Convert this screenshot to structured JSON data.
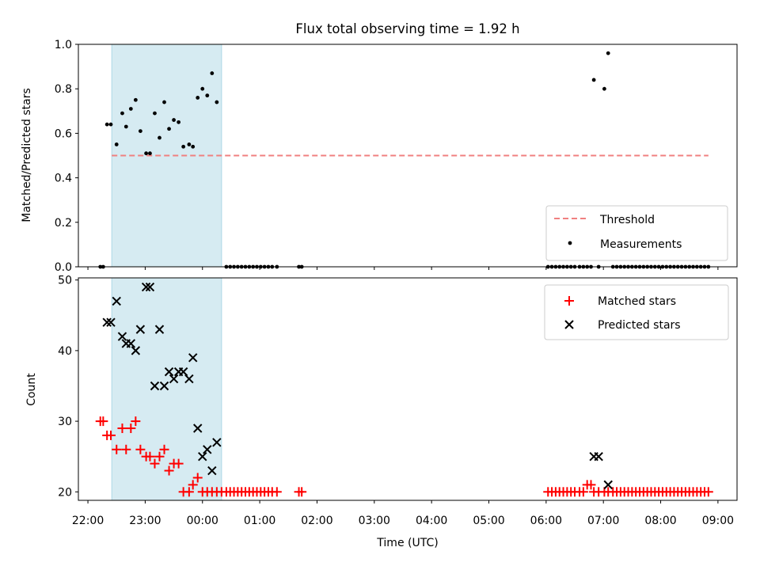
{
  "title": "Flux total observing time = 1.92 h",
  "colors": {
    "threshold": "#f08080",
    "shade": "#add8e6",
    "matched": "#ff0000",
    "predicted": "#000000",
    "measurement": "#000000"
  },
  "chart_data": [
    {
      "type": "scatter",
      "ylabel": "Matched/Predicted stars",
      "ylim": [
        0,
        1.0
      ],
      "yticks": [
        "0.0",
        "0.2",
        "0.4",
        "0.6",
        "0.8",
        "1.0"
      ],
      "xlim": [
        "21:50",
        "09:20"
      ],
      "grid": false,
      "legend_position": "lower right",
      "legend": [
        "Threshold",
        "Measurements"
      ],
      "shaded_interval": [
        "22:25",
        "00:20"
      ],
      "threshold": {
        "y": 0.5,
        "x_start": "22:25",
        "x_end": "08:50"
      },
      "series": [
        {
          "name": "Measurements",
          "points": [
            [
              "22:13",
              0
            ],
            [
              "22:16",
              0
            ],
            [
              "22:20",
              0.64
            ],
            [
              "22:24",
              0.64
            ],
            [
              "22:30",
              0.55
            ],
            [
              "22:36",
              0.69
            ],
            [
              "22:40",
              0.63
            ],
            [
              "22:45",
              0.71
            ],
            [
              "22:50",
              0.75
            ],
            [
              "22:55",
              0.61
            ],
            [
              "23:01",
              0.51
            ],
            [
              "23:05",
              0.51
            ],
            [
              "23:10",
              0.69
            ],
            [
              "23:15",
              0.58
            ],
            [
              "23:20",
              0.74
            ],
            [
              "23:25",
              0.62
            ],
            [
              "23:30",
              0.66
            ],
            [
              "23:35",
              0.65
            ],
            [
              "23:40",
              0.54
            ],
            [
              "23:46",
              0.55
            ],
            [
              "23:50",
              0.54
            ],
            [
              "23:55",
              0.76
            ],
            [
              "00:00",
              0.8
            ],
            [
              "00:05",
              0.77
            ],
            [
              "00:10",
              0.87
            ],
            [
              "00:15",
              0.74
            ],
            [
              "00:25",
              0
            ],
            [
              "00:29",
              0
            ],
            [
              "00:33",
              0
            ],
            [
              "00:37",
              0
            ],
            [
              "00:41",
              0
            ],
            [
              "00:45",
              0
            ],
            [
              "00:49",
              0
            ],
            [
              "00:53",
              0
            ],
            [
              "00:57",
              0
            ],
            [
              "01:01",
              0
            ],
            [
              "01:05",
              0
            ],
            [
              "01:09",
              0
            ],
            [
              "01:13",
              0
            ],
            [
              "01:18",
              0
            ],
            [
              "01:41",
              0
            ],
            [
              "01:44",
              0
            ],
            [
              "06:02",
              0
            ],
            [
              "06:06",
              0
            ],
            [
              "06:10",
              0
            ],
            [
              "06:14",
              0
            ],
            [
              "06:18",
              0
            ],
            [
              "06:22",
              0
            ],
            [
              "06:26",
              0
            ],
            [
              "06:30",
              0
            ],
            [
              "06:35",
              0
            ],
            [
              "06:39",
              0
            ],
            [
              "06:43",
              0
            ],
            [
              "06:47",
              0
            ],
            [
              "06:50",
              0.84
            ],
            [
              "06:55",
              0
            ],
            [
              "07:01",
              0.8
            ],
            [
              "07:05",
              0.96
            ],
            [
              "07:10",
              0
            ],
            [
              "07:14",
              0
            ],
            [
              "07:18",
              0
            ],
            [
              "07:22",
              0
            ],
            [
              "07:26",
              0
            ],
            [
              "07:30",
              0
            ],
            [
              "07:34",
              0
            ],
            [
              "07:38",
              0
            ],
            [
              "07:42",
              0
            ],
            [
              "07:46",
              0
            ],
            [
              "07:50",
              0
            ],
            [
              "07:54",
              0
            ],
            [
              "07:58",
              0
            ],
            [
              "08:02",
              0
            ],
            [
              "08:06",
              0
            ],
            [
              "08:10",
              0
            ],
            [
              "08:14",
              0
            ],
            [
              "08:18",
              0
            ],
            [
              "08:22",
              0
            ],
            [
              "08:26",
              0
            ],
            [
              "08:30",
              0
            ],
            [
              "08:34",
              0
            ],
            [
              "08:38",
              0
            ],
            [
              "08:42",
              0
            ],
            [
              "08:46",
              0
            ],
            [
              "08:50",
              0
            ]
          ]
        }
      ]
    },
    {
      "type": "scatter",
      "ylabel": "Count",
      "xlabel": "Time (UTC)",
      "ylim": [
        18.8,
        50.3
      ],
      "yticks": [
        "20",
        "30",
        "40",
        "50"
      ],
      "xlim": [
        "21:50",
        "09:20"
      ],
      "xticks": [
        "22:00",
        "23:00",
        "00:00",
        "01:00",
        "02:00",
        "03:00",
        "04:00",
        "05:00",
        "06:00",
        "07:00",
        "08:00",
        "09:00"
      ],
      "grid": false,
      "legend_position": "upper right",
      "legend": [
        "Matched stars",
        "Predicted stars"
      ],
      "shaded_interval": [
        "22:25",
        "00:20"
      ],
      "series": [
        {
          "name": "Matched stars",
          "points": [
            [
              "22:13",
              30
            ],
            [
              "22:16",
              30
            ],
            [
              "22:20",
              28
            ],
            [
              "22:24",
              28
            ],
            [
              "22:30",
              26
            ],
            [
              "22:36",
              29
            ],
            [
              "22:40",
              26
            ],
            [
              "22:45",
              29
            ],
            [
              "22:50",
              30
            ],
            [
              "22:55",
              26
            ],
            [
              "23:01",
              25
            ],
            [
              "23:05",
              25
            ],
            [
              "23:10",
              24
            ],
            [
              "23:15",
              25
            ],
            [
              "23:20",
              26
            ],
            [
              "23:25",
              23
            ],
            [
              "23:30",
              24
            ],
            [
              "23:35",
              24
            ],
            [
              "23:40",
              20
            ],
            [
              "23:46",
              20
            ],
            [
              "23:50",
              21
            ],
            [
              "23:55",
              22
            ],
            [
              "00:00",
              20
            ],
            [
              "00:05",
              20
            ],
            [
              "00:10",
              20
            ],
            [
              "00:15",
              20
            ],
            [
              "00:20",
              20
            ],
            [
              "00:25",
              20
            ],
            [
              "00:29",
              20
            ],
            [
              "00:33",
              20
            ],
            [
              "00:37",
              20
            ],
            [
              "00:41",
              20
            ],
            [
              "00:45",
              20
            ],
            [
              "00:49",
              20
            ],
            [
              "00:53",
              20
            ],
            [
              "00:57",
              20
            ],
            [
              "01:01",
              20
            ],
            [
              "01:05",
              20
            ],
            [
              "01:09",
              20
            ],
            [
              "01:13",
              20
            ],
            [
              "01:18",
              20
            ],
            [
              "01:41",
              20
            ],
            [
              "01:44",
              20
            ],
            [
              "06:02",
              20
            ],
            [
              "06:06",
              20
            ],
            [
              "06:10",
              20
            ],
            [
              "06:14",
              20
            ],
            [
              "06:18",
              20
            ],
            [
              "06:22",
              20
            ],
            [
              "06:26",
              20
            ],
            [
              "06:30",
              20
            ],
            [
              "06:35",
              20
            ],
            [
              "06:39",
              20
            ],
            [
              "06:43",
              21
            ],
            [
              "06:47",
              21
            ],
            [
              "06:50",
              20
            ],
            [
              "06:55",
              20
            ],
            [
              "07:01",
              20
            ],
            [
              "07:05",
              20
            ],
            [
              "07:10",
              20
            ],
            [
              "07:14",
              20
            ],
            [
              "07:18",
              20
            ],
            [
              "07:22",
              20
            ],
            [
              "07:26",
              20
            ],
            [
              "07:30",
              20
            ],
            [
              "07:34",
              20
            ],
            [
              "07:38",
              20
            ],
            [
              "07:42",
              20
            ],
            [
              "07:46",
              20
            ],
            [
              "07:50",
              20
            ],
            [
              "07:54",
              20
            ],
            [
              "07:58",
              20
            ],
            [
              "08:02",
              20
            ],
            [
              "08:06",
              20
            ],
            [
              "08:10",
              20
            ],
            [
              "08:14",
              20
            ],
            [
              "08:18",
              20
            ],
            [
              "08:22",
              20
            ],
            [
              "08:26",
              20
            ],
            [
              "08:30",
              20
            ],
            [
              "08:34",
              20
            ],
            [
              "08:38",
              20
            ],
            [
              "08:42",
              20
            ],
            [
              "08:46",
              20
            ],
            [
              "08:50",
              20
            ]
          ]
        },
        {
          "name": "Predicted stars",
          "points": [
            [
              "22:20",
              44
            ],
            [
              "22:24",
              44
            ],
            [
              "22:30",
              47
            ],
            [
              "22:36",
              42
            ],
            [
              "22:40",
              41
            ],
            [
              "22:45",
              41
            ],
            [
              "22:50",
              40
            ],
            [
              "22:55",
              43
            ],
            [
              "23:01",
              49
            ],
            [
              "23:05",
              49
            ],
            [
              "23:10",
              35
            ],
            [
              "23:15",
              43
            ],
            [
              "23:20",
              35
            ],
            [
              "23:25",
              37
            ],
            [
              "23:30",
              36
            ],
            [
              "23:35",
              37
            ],
            [
              "23:40",
              37
            ],
            [
              "23:46",
              36
            ],
            [
              "23:50",
              39
            ],
            [
              "23:55",
              29
            ],
            [
              "00:00",
              25
            ],
            [
              "00:05",
              26
            ],
            [
              "00:10",
              23
            ],
            [
              "00:15",
              27
            ],
            [
              "06:50",
              25
            ],
            [
              "06:55",
              25
            ],
            [
              "07:05",
              21
            ]
          ]
        }
      ]
    }
  ]
}
